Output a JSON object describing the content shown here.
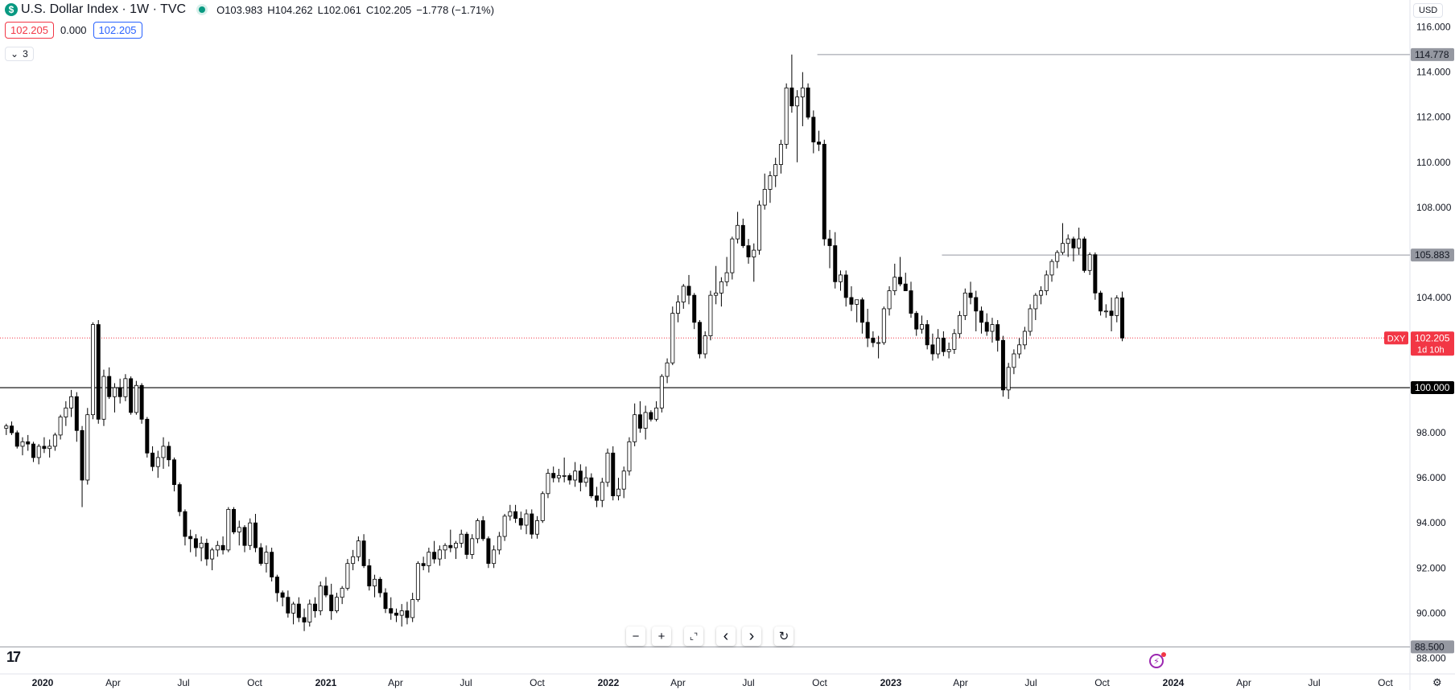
{
  "header": {
    "symbol_icon": "$",
    "title": "U.S. Dollar Index · 1W · TVC",
    "ohlc": {
      "o": "O103.983",
      "h": "H104.262",
      "l": "L102.061",
      "c": "C102.205",
      "change": "−1.778 (−1.71%)"
    },
    "sell_price": "102.205",
    "spread": "0.000",
    "buy_price": "102.205",
    "indicators_count": "3",
    "currency": "USD"
  },
  "controls": {
    "zoom_out": "−",
    "zoom_in": "+",
    "reset_scale": "⌞⌝",
    "scroll_left": "‹",
    "scroll_right": "›",
    "reset": "↻"
  },
  "logo": "17",
  "colors": {
    "up": "#ffffff",
    "down": "#000000",
    "wick": "#000000",
    "last_price": "#f23645",
    "grid": "#e0e3eb",
    "hline_gray": "#9598a1"
  },
  "chart_data": {
    "type": "candlestick",
    "title": "U.S. Dollar Index · 1W · TVC",
    "timeframe": "1W",
    "y_ticks": [
      88,
      90,
      92,
      94,
      96,
      98,
      100,
      102,
      104,
      106,
      108,
      110,
      112,
      114,
      116
    ],
    "y_tick_labels": [
      "88.000",
      "90.000",
      "92.000",
      "94.000",
      "96.000",
      "98.000",
      "100.000",
      "102.000",
      "104.000",
      "106.000",
      "108.000",
      "110.000",
      "112.000",
      "114.000",
      "116.000"
    ],
    "ylim": [
      87.3,
      117.2
    ],
    "x_ticks": [
      {
        "label": "2020",
        "date": "2020-01-01",
        "bold": true
      },
      {
        "label": "Apr",
        "date": "2020-04-01"
      },
      {
        "label": "Jul",
        "date": "2020-07-01"
      },
      {
        "label": "Oct",
        "date": "2020-10-01"
      },
      {
        "label": "2021",
        "date": "2021-01-01",
        "bold": true
      },
      {
        "label": "Apr",
        "date": "2021-04-01"
      },
      {
        "label": "Jul",
        "date": "2021-07-01"
      },
      {
        "label": "Oct",
        "date": "2021-10-01"
      },
      {
        "label": "2022",
        "date": "2022-01-01",
        "bold": true
      },
      {
        "label": "Apr",
        "date": "2022-04-01"
      },
      {
        "label": "Jul",
        "date": "2022-07-01"
      },
      {
        "label": "Oct",
        "date": "2022-10-01"
      },
      {
        "label": "2023",
        "date": "2023-01-01",
        "bold": true
      },
      {
        "label": "Apr",
        "date": "2023-04-01"
      },
      {
        "label": "Jul",
        "date": "2023-07-01"
      },
      {
        "label": "Oct",
        "date": "2023-10-01"
      },
      {
        "label": "2024",
        "date": "2024-01-01",
        "bold": true
      },
      {
        "label": "Apr",
        "date": "2024-04-01"
      },
      {
        "label": "Jul",
        "date": "2024-07-01"
      },
      {
        "label": "Oct",
        "date": "2024-10-01"
      }
    ],
    "first_candle_date": "2019-11-15",
    "candle_interval": "1 week",
    "candles": [
      [
        98.2,
        98.4,
        97.9,
        98.3
      ],
      [
        98.3,
        98.5,
        97.9,
        98.0
      ],
      [
        98.0,
        98.1,
        97.3,
        97.4
      ],
      [
        97.4,
        97.8,
        97.0,
        97.6
      ],
      [
        97.6,
        97.9,
        97.2,
        97.5
      ],
      [
        97.5,
        97.6,
        96.7,
        96.9
      ],
      [
        96.9,
        97.5,
        96.6,
        97.4
      ],
      [
        97.4,
        97.8,
        97.1,
        97.3
      ],
      [
        97.3,
        97.7,
        96.9,
        97.4
      ],
      [
        97.4,
        98.0,
        97.2,
        97.9
      ],
      [
        97.9,
        98.8,
        97.7,
        98.7
      ],
      [
        98.7,
        99.4,
        98.3,
        99.1
      ],
      [
        99.1,
        99.9,
        98.7,
        99.6
      ],
      [
        99.6,
        99.8,
        97.6,
        98.1
      ],
      [
        98.1,
        98.3,
        94.7,
        95.9
      ],
      [
        95.9,
        99.1,
        95.7,
        98.8
      ],
      [
        98.8,
        102.9,
        98.6,
        102.8
      ],
      [
        102.8,
        103.0,
        98.4,
        98.6
      ],
      [
        98.6,
        100.8,
        98.3,
        100.5
      ],
      [
        100.5,
        100.9,
        99.5,
        99.6
      ],
      [
        99.6,
        100.2,
        98.9,
        100.0
      ],
      [
        100.0,
        100.4,
        99.3,
        99.6
      ],
      [
        99.6,
        100.6,
        99.4,
        100.4
      ],
      [
        100.4,
        100.5,
        98.8,
        98.9
      ],
      [
        98.9,
        100.3,
        98.8,
        100.1
      ],
      [
        100.1,
        100.2,
        98.4,
        98.6
      ],
      [
        98.6,
        98.7,
        96.9,
        97.1
      ],
      [
        97.1,
        97.4,
        96.3,
        96.5
      ],
      [
        96.5,
        97.2,
        96.0,
        96.9
      ],
      [
        96.9,
        97.8,
        96.4,
        97.4
      ],
      [
        97.4,
        97.6,
        96.5,
        96.8
      ],
      [
        96.8,
        96.9,
        95.4,
        95.7
      ],
      [
        95.7,
        95.8,
        94.3,
        94.5
      ],
      [
        94.5,
        94.6,
        93.0,
        93.4
      ],
      [
        93.4,
        93.7,
        92.7,
        93.3
      ],
      [
        93.3,
        93.5,
        92.5,
        92.9
      ],
      [
        92.9,
        93.4,
        92.3,
        93.1
      ],
      [
        93.1,
        93.3,
        92.1,
        92.4
      ],
      [
        92.4,
        92.9,
        91.9,
        92.8
      ],
      [
        92.8,
        93.2,
        92.5,
        93.0
      ],
      [
        93.0,
        93.4,
        92.6,
        92.8
      ],
      [
        92.8,
        94.7,
        92.7,
        94.6
      ],
      [
        94.6,
        94.7,
        93.5,
        93.6
      ],
      [
        93.6,
        94.1,
        93.0,
        93.8
      ],
      [
        93.8,
        93.9,
        92.7,
        93.0
      ],
      [
        93.0,
        94.2,
        92.8,
        94.0
      ],
      [
        94.0,
        94.4,
        92.7,
        92.9
      ],
      [
        92.9,
        93.1,
        92.1,
        92.2
      ],
      [
        92.2,
        93.0,
        91.8,
        92.7
      ],
      [
        92.7,
        92.9,
        91.4,
        91.6
      ],
      [
        91.6,
        91.7,
        90.5,
        90.9
      ],
      [
        90.9,
        91.0,
        90.3,
        90.7
      ],
      [
        90.7,
        91.0,
        89.8,
        90.0
      ],
      [
        90.0,
        90.5,
        89.5,
        90.4
      ],
      [
        90.4,
        90.7,
        89.6,
        89.8
      ],
      [
        89.8,
        90.2,
        89.2,
        89.6
      ],
      [
        89.6,
        90.6,
        89.4,
        90.4
      ],
      [
        90.4,
        90.7,
        89.8,
        90.1
      ],
      [
        90.1,
        91.4,
        89.9,
        91.2
      ],
      [
        91.2,
        91.6,
        90.7,
        90.8
      ],
      [
        90.8,
        91.3,
        89.7,
        90.1
      ],
      [
        90.1,
        90.9,
        90.0,
        90.7
      ],
      [
        90.7,
        91.2,
        90.4,
        91.1
      ],
      [
        91.1,
        92.4,
        91.0,
        92.2
      ],
      [
        92.2,
        92.8,
        91.9,
        92.5
      ],
      [
        92.5,
        93.4,
        92.3,
        93.2
      ],
      [
        93.2,
        93.5,
        92.0,
        92.1
      ],
      [
        92.1,
        92.4,
        91.0,
        91.2
      ],
      [
        91.2,
        91.7,
        90.7,
        91.5
      ],
      [
        91.5,
        91.6,
        90.7,
        90.9
      ],
      [
        90.9,
        91.1,
        90.0,
        90.2
      ],
      [
        90.2,
        90.7,
        89.7,
        90.0
      ],
      [
        90.0,
        90.2,
        89.6,
        89.9
      ],
      [
        89.9,
        90.4,
        89.4,
        90.1
      ],
      [
        90.1,
        90.5,
        89.5,
        89.8
      ],
      [
        89.8,
        90.9,
        89.6,
        90.6
      ],
      [
        90.6,
        92.3,
        90.5,
        92.2
      ],
      [
        92.2,
        92.5,
        91.9,
        92.1
      ],
      [
        92.1,
        92.9,
        91.8,
        92.7
      ],
      [
        92.7,
        93.2,
        92.2,
        92.4
      ],
      [
        92.4,
        93.0,
        92.1,
        92.8
      ],
      [
        92.8,
        93.1,
        92.4,
        93.0
      ],
      [
        93.0,
        93.7,
        92.7,
        92.9
      ],
      [
        92.9,
        93.2,
        92.4,
        93.1
      ],
      [
        93.1,
        93.7,
        92.9,
        93.5
      ],
      [
        93.5,
        93.6,
        92.4,
        92.6
      ],
      [
        92.6,
        93.5,
        92.4,
        93.3
      ],
      [
        93.3,
        94.2,
        93.1,
        94.1
      ],
      [
        94.1,
        94.3,
        93.2,
        93.3
      ],
      [
        93.3,
        93.4,
        92.0,
        92.2
      ],
      [
        92.2,
        93.0,
        92.0,
        92.8
      ],
      [
        92.8,
        93.6,
        92.6,
        93.4
      ],
      [
        93.4,
        94.4,
        93.2,
        94.3
      ],
      [
        94.3,
        94.8,
        94.1,
        94.5
      ],
      [
        94.5,
        94.8,
        94.0,
        94.2
      ],
      [
        94.2,
        94.5,
        93.7,
        93.9
      ],
      [
        93.9,
        94.6,
        93.5,
        94.4
      ],
      [
        94.4,
        94.6,
        93.3,
        93.5
      ],
      [
        93.5,
        94.3,
        93.3,
        94.1
      ],
      [
        94.1,
        95.4,
        94.0,
        95.3
      ],
      [
        95.3,
        96.4,
        95.1,
        96.2
      ],
      [
        96.2,
        96.5,
        95.8,
        96.0
      ],
      [
        96.0,
        96.4,
        95.8,
        96.1
      ],
      [
        96.1,
        96.9,
        95.8,
        96.1
      ],
      [
        96.1,
        96.2,
        95.7,
        95.9
      ],
      [
        95.9,
        96.7,
        95.6,
        96.3
      ],
      [
        96.3,
        96.6,
        95.4,
        95.8
      ],
      [
        95.8,
        96.5,
        95.6,
        96.0
      ],
      [
        96.0,
        96.2,
        95.1,
        95.2
      ],
      [
        95.2,
        95.6,
        94.7,
        95.0
      ],
      [
        95.0,
        96.0,
        94.7,
        95.8
      ],
      [
        95.8,
        97.3,
        95.6,
        97.1
      ],
      [
        97.1,
        97.4,
        95.0,
        95.2
      ],
      [
        95.2,
        96.0,
        95.0,
        95.5
      ],
      [
        95.5,
        96.5,
        95.1,
        96.3
      ],
      [
        96.3,
        97.8,
        96.1,
        97.6
      ],
      [
        97.6,
        99.3,
        97.4,
        98.8
      ],
      [
        98.8,
        99.4,
        98.0,
        98.2
      ],
      [
        98.2,
        99.2,
        97.7,
        98.9
      ],
      [
        98.9,
        99.0,
        98.5,
        98.6
      ],
      [
        98.6,
        99.4,
        98.5,
        99.1
      ],
      [
        99.1,
        100.6,
        98.9,
        100.5
      ],
      [
        100.5,
        101.3,
        100.2,
        101.1
      ],
      [
        101.1,
        103.6,
        101.0,
        103.3
      ],
      [
        103.3,
        104.1,
        102.9,
        103.8
      ],
      [
        103.8,
        104.6,
        103.5,
        104.5
      ],
      [
        104.5,
        105.0,
        103.7,
        104.1
      ],
      [
        104.1,
        104.2,
        102.6,
        102.9
      ],
      [
        102.9,
        103.0,
        101.3,
        101.5
      ],
      [
        101.5,
        102.5,
        101.3,
        102.3
      ],
      [
        102.3,
        104.3,
        102.1,
        104.1
      ],
      [
        104.1,
        105.4,
        103.7,
        104.2
      ],
      [
        104.2,
        104.9,
        103.6,
        104.7
      ],
      [
        104.7,
        105.8,
        104.5,
        105.1
      ],
      [
        105.1,
        106.7,
        104.8,
        106.6
      ],
      [
        106.6,
        107.8,
        106.4,
        107.2
      ],
      [
        107.2,
        107.5,
        106.2,
        106.3
      ],
      [
        106.3,
        106.6,
        105.5,
        105.8
      ],
      [
        105.8,
        106.4,
        104.7,
        106.1
      ],
      [
        106.1,
        108.3,
        105.9,
        108.1
      ],
      [
        108.1,
        109.5,
        107.9,
        108.8
      ],
      [
        108.8,
        109.6,
        108.2,
        109.4
      ],
      [
        109.4,
        110.2,
        108.9,
        109.9
      ],
      [
        109.9,
        111.0,
        109.5,
        110.8
      ],
      [
        110.8,
        113.5,
        110.6,
        113.3
      ],
      [
        113.3,
        114.78,
        112.2,
        112.5
      ],
      [
        112.5,
        113.2,
        110.0,
        112.9
      ],
      [
        112.9,
        114.0,
        111.6,
        113.3
      ],
      [
        113.3,
        113.5,
        111.9,
        112.0
      ],
      [
        112.0,
        112.3,
        110.4,
        110.9
      ],
      [
        110.9,
        111.4,
        110.5,
        110.8
      ],
      [
        110.8,
        111.0,
        106.3,
        106.6
      ],
      [
        106.6,
        107.0,
        105.3,
        106.3
      ],
      [
        106.3,
        106.9,
        104.4,
        104.7
      ],
      [
        104.7,
        105.2,
        104.3,
        105.0
      ],
      [
        105.0,
        105.2,
        103.6,
        104.0
      ],
      [
        104.0,
        104.5,
        103.4,
        103.7
      ],
      [
        103.7,
        103.9,
        102.9,
        103.9
      ],
      [
        103.9,
        104.0,
        102.4,
        102.9
      ],
      [
        102.9,
        103.5,
        101.8,
        102.2
      ],
      [
        102.2,
        102.5,
        101.8,
        102.0
      ],
      [
        102.0,
        102.3,
        101.3,
        102.0
      ],
      [
        102.0,
        103.6,
        101.9,
        103.5
      ],
      [
        103.5,
        104.5,
        103.2,
        104.3
      ],
      [
        104.3,
        105.5,
        104.1,
        104.9
      ],
      [
        104.9,
        105.8,
        104.5,
        104.6
      ],
      [
        104.6,
        105.1,
        104.3,
        104.3
      ],
      [
        104.3,
        104.7,
        103.1,
        103.3
      ],
      [
        103.3,
        103.4,
        102.3,
        102.6
      ],
      [
        102.6,
        103.2,
        102.4,
        102.8
      ],
      [
        102.8,
        103.0,
        101.7,
        101.9
      ],
      [
        101.9,
        102.4,
        101.2,
        101.5
      ],
      [
        101.5,
        102.6,
        101.3,
        102.2
      ],
      [
        102.2,
        102.5,
        101.4,
        101.6
      ],
      [
        101.6,
        102.0,
        101.3,
        101.7
      ],
      [
        101.7,
        102.6,
        101.5,
        102.4
      ],
      [
        102.4,
        103.4,
        102.2,
        103.2
      ],
      [
        103.2,
        104.4,
        103.0,
        104.2
      ],
      [
        104.2,
        104.7,
        103.7,
        104.0
      ],
      [
        104.0,
        104.3,
        102.5,
        103.4
      ],
      [
        103.4,
        103.6,
        102.4,
        102.9
      ],
      [
        102.9,
        103.3,
        102.3,
        102.5
      ],
      [
        102.5,
        103.1,
        102.0,
        102.8
      ],
      [
        102.8,
        103.0,
        101.6,
        102.1
      ],
      [
        102.1,
        102.3,
        99.6,
        99.9
      ],
      [
        99.9,
        101.1,
        99.5,
        100.9
      ],
      [
        100.9,
        101.7,
        100.6,
        101.5
      ],
      [
        101.5,
        102.2,
        101.3,
        101.9
      ],
      [
        101.9,
        102.7,
        101.7,
        102.5
      ],
      [
        102.5,
        103.7,
        102.3,
        103.5
      ],
      [
        103.5,
        104.2,
        103.0,
        104.1
      ],
      [
        104.1,
        104.5,
        103.7,
        104.3
      ],
      [
        104.3,
        105.2,
        104.1,
        105.0
      ],
      [
        105.0,
        105.7,
        104.7,
        105.6
      ],
      [
        105.6,
        106.1,
        105.3,
        106.0
      ],
      [
        106.0,
        107.3,
        105.9,
        106.4
      ],
      [
        106.4,
        106.8,
        105.8,
        106.6
      ],
      [
        106.6,
        106.7,
        105.6,
        106.2
      ],
      [
        106.2,
        107.1,
        105.9,
        106.6
      ],
      [
        106.6,
        106.7,
        105.1,
        105.2
      ],
      [
        105.2,
        106.0,
        105.0,
        105.9
      ],
      [
        105.9,
        106.0,
        103.9,
        104.2
      ],
      [
        104.2,
        104.3,
        103.2,
        103.4
      ],
      [
        103.4,
        103.7,
        103.1,
        103.4
      ],
      [
        103.4,
        104.0,
        102.5,
        103.2
      ],
      [
        103.2,
        104.1,
        102.9,
        103.98
      ],
      [
        103.983,
        104.262,
        102.061,
        102.205
      ]
    ],
    "horizontal_lines": [
      {
        "value": 114.778,
        "label": "114.778",
        "start_date": "2022-09-28",
        "style": "gray"
      },
      {
        "value": 105.883,
        "label": "105.883",
        "start_date": "2023-03-08",
        "style": "gray"
      },
      {
        "value": 100.0,
        "label": "100.000",
        "start_date": "2019-11-01",
        "style": "black"
      },
      {
        "value": 88.5,
        "label": "88.500",
        "start_date": "2019-11-01",
        "style": "gray"
      }
    ],
    "last_price": {
      "value": 102.205,
      "label": "102.205",
      "countdown": "1d 10h",
      "symbol": "DXY"
    }
  }
}
